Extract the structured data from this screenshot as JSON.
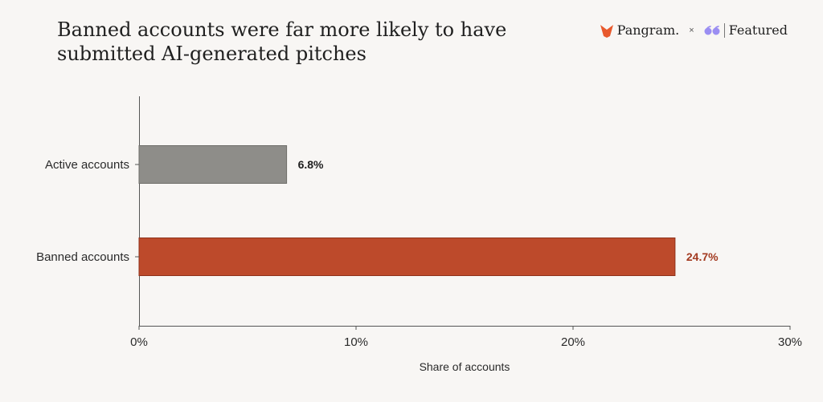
{
  "header": {
    "title_line1": "Banned accounts were far more likely to have",
    "title_line2": "submitted AI-generated pitches",
    "brand_left": "Pangram.",
    "brand_sep": "×",
    "brand_right": "Featured"
  },
  "colors": {
    "active": "#8e8d89",
    "banned": "#bd4a2b",
    "active_label": "#1f1f1f",
    "banned_label": "#a33a20"
  },
  "chart_data": {
    "type": "bar",
    "orientation": "horizontal",
    "categories": [
      "Active accounts",
      "Banned accounts"
    ],
    "values": [
      6.8,
      24.7
    ],
    "value_labels": [
      "6.8%",
      "24.7%"
    ],
    "xlabel": "Share of accounts",
    "ylabel": "",
    "xlim": [
      0,
      30
    ],
    "xticks": [
      0,
      10,
      20,
      30
    ],
    "xtick_labels": [
      "0%",
      "10%",
      "20%",
      "30%"
    ],
    "grid": false
  }
}
